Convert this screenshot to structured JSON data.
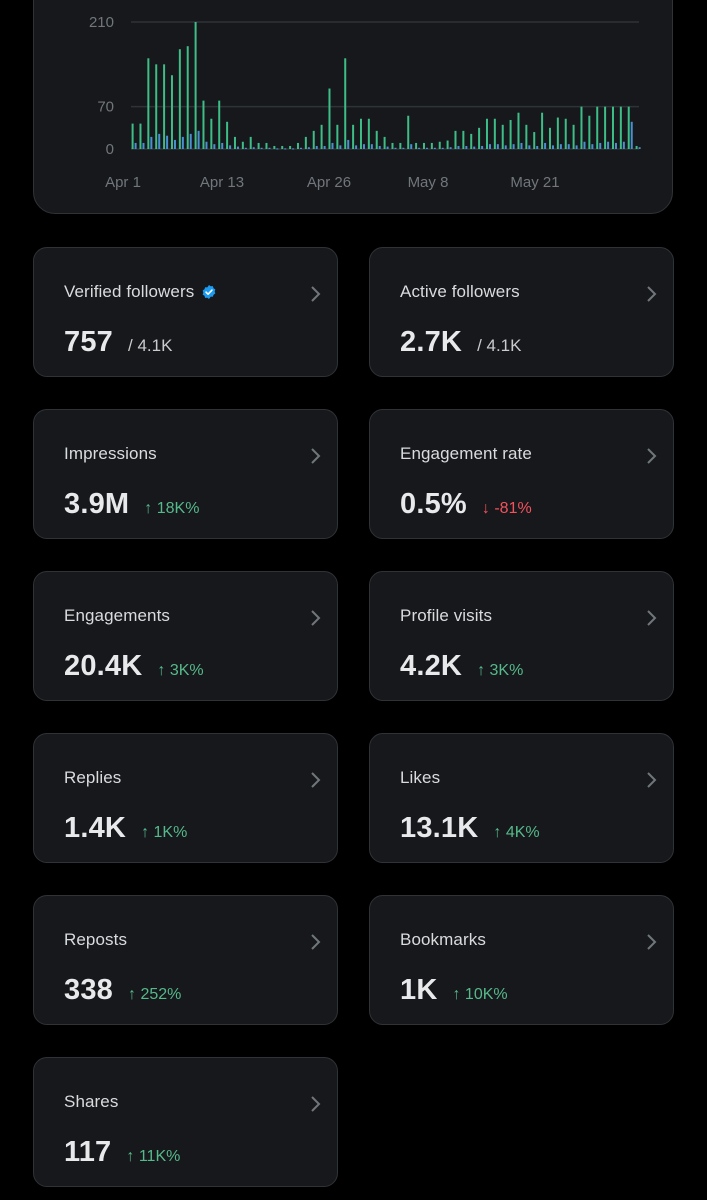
{
  "chart_data": {
    "type": "bar",
    "y_ticks": [
      "210",
      "70",
      "0"
    ],
    "x_ticks": [
      "Apr 1",
      "Apr 13",
      "Apr 26",
      "May 8",
      "May 21"
    ],
    "ylim": [
      0,
      210
    ],
    "grid": true,
    "series": [
      {
        "color": "#3ebd87",
        "values": [
          42,
          42,
          150,
          140,
          140,
          122,
          165,
          170,
          210,
          80,
          50,
          80,
          45,
          20,
          12,
          20,
          10,
          10,
          5,
          5,
          5,
          10,
          20,
          30,
          40,
          100,
          40,
          150,
          40,
          50,
          50,
          30,
          20,
          10,
          10,
          55,
          10,
          10,
          10,
          12,
          14,
          30,
          30,
          25,
          35,
          50,
          50,
          40,
          48,
          60,
          40,
          28,
          60,
          35,
          52,
          50,
          40,
          70,
          55,
          70,
          70,
          70,
          70,
          70,
          5
        ]
      },
      {
        "color": "#4a8fd0",
        "values": [
          10,
          10,
          20,
          25,
          22,
          15,
          20,
          25,
          30,
          12,
          8,
          10,
          6,
          4,
          2,
          3,
          2,
          2,
          1,
          1,
          1,
          2,
          3,
          5,
          5,
          10,
          6,
          15,
          6,
          8,
          8,
          5,
          4,
          2,
          2,
          8,
          2,
          2,
          2,
          2,
          3,
          5,
          5,
          4,
          5,
          8,
          8,
          6,
          8,
          10,
          6,
          5,
          10,
          6,
          8,
          8,
          6,
          12,
          8,
          10,
          12,
          10,
          12,
          45,
          3
        ]
      }
    ]
  },
  "stats": [
    {
      "label": "Verified followers",
      "value": "757",
      "of": "/ 4.1K"
    },
    {
      "label": "Active followers",
      "value": "2.7K",
      "of": "/ 4.1K"
    },
    {
      "label": "Impressions",
      "value": "3.9M",
      "delta": "↑ 18K%"
    },
    {
      "label": "Engagement rate",
      "value": "0.5%",
      "delta": "↓ -81%"
    },
    {
      "label": "Engagements",
      "value": "20.4K",
      "delta": "↑ 3K%"
    },
    {
      "label": "Profile visits",
      "value": "4.2K",
      "delta": "↑ 3K%"
    },
    {
      "label": "Replies",
      "value": "1.4K",
      "delta": "↑ 1K%"
    },
    {
      "label": "Likes",
      "value": "13.1K",
      "delta": "↑ 4K%"
    },
    {
      "label": "Reposts",
      "value": "338",
      "delta": "↑ 252%"
    },
    {
      "label": "Bookmarks",
      "value": "1K",
      "delta": "↑ 10K%"
    },
    {
      "label": "Shares",
      "value": "117",
      "delta": "↑ 11K%"
    }
  ],
  "icons": {
    "verified": "verified-badge-icon",
    "chevron": "chevron-right-icon"
  },
  "colors": {
    "up": "#56b98a",
    "down": "#f4525b",
    "verified": "#1d9bf0"
  }
}
